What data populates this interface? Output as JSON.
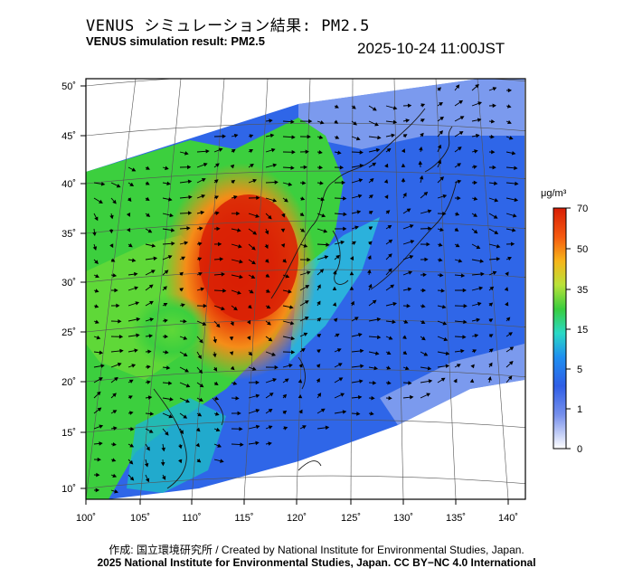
{
  "header": {
    "title_jp": "VENUS シミュレーション結果: PM2.5",
    "title_en": "VENUS simulation result: PM2.5",
    "timestamp": "2025-10-24 11:00JST"
  },
  "map": {
    "lat_labels": [
      "50˚",
      "45˚",
      "40˚",
      "35˚",
      "30˚",
      "25˚",
      "20˚",
      "15˚",
      "10˚"
    ],
    "lon_labels": [
      "100˚",
      "105˚",
      "110˚",
      "115˚",
      "120˚",
      "125˚",
      "130˚",
      "135˚",
      "140˚"
    ],
    "lat_values": [
      50,
      45,
      40,
      35,
      30,
      25,
      20,
      15,
      10
    ],
    "lon_values": [
      100,
      105,
      110,
      115,
      120,
      125,
      130,
      135,
      140
    ]
  },
  "colorbar": {
    "unit": "μg/m³",
    "tick_labels": [
      "70",
      "50",
      "35",
      "15",
      "5",
      "1",
      "0"
    ],
    "colors": [
      "#d81e05",
      "#f56a10",
      "#f7b51a",
      "#b9e23a",
      "#39cd3e",
      "#2ad9c5",
      "#1f8ff0",
      "#2f5ee6",
      "#5c7be8",
      "#b9c6f6",
      "#ffffff"
    ]
  },
  "footer": {
    "credit": "作成: 国立環境研究所 / Created by National Institute for Environmental Studies, Japan.",
    "copyright": "2025 National Institute for Environmental Studies, Japan. CC BY−NC 4.0 International"
  }
}
